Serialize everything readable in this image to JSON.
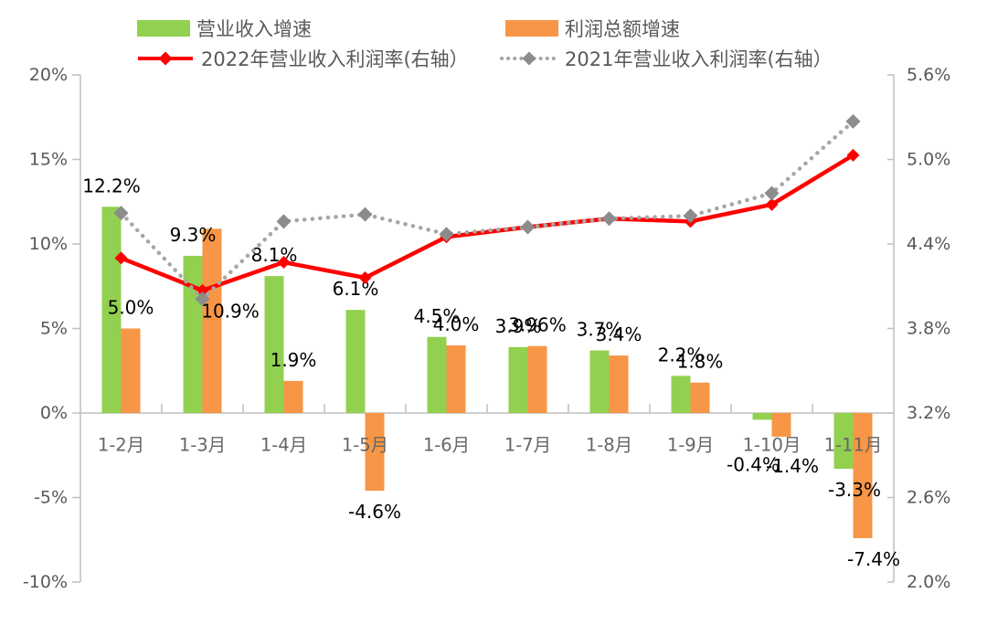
{
  "chart_data": {
    "type": "combo",
    "title": "",
    "legend_position": "top",
    "grid": "zero-line-only",
    "categories": [
      "1-2月",
      "1-3月",
      "1-4月",
      "1-5月",
      "1-6月",
      "1-7月",
      "1-8月",
      "1-9月",
      "1-10月",
      "1-11月"
    ],
    "series": [
      {
        "name": "营业收入增速",
        "type": "bar",
        "axis": "left",
        "color": "#92D050",
        "values": [
          12.2,
          9.3,
          8.1,
          6.1,
          4.5,
          3.9,
          3.7,
          2.2,
          -0.4,
          -3.3
        ],
        "labels": [
          "12.2%",
          "9.3%",
          "8.1%",
          "6.1%",
          "4.5%",
          "3.9%",
          "3.7%",
          "2.2%",
          "-0.4%",
          "-3.3%"
        ],
        "label_dx": [
          0,
          0,
          0,
          0,
          0,
          0,
          0,
          0,
          -10,
          12
        ],
        "label_dy": [
          0,
          0,
          0,
          0,
          0,
          0,
          0,
          0,
          26,
          0
        ]
      },
      {
        "name": "利润总额增速",
        "type": "bar",
        "axis": "left",
        "color": "#F79646",
        "values": [
          5.0,
          10.9,
          1.9,
          -4.6,
          4.0,
          3.96,
          3.4,
          1.8,
          -1.4,
          -7.4
        ],
        "labels": [
          "5.0%",
          "10.9%",
          "1.9%",
          "-4.6%",
          "4.0%",
          "3.96%",
          "3.4%",
          "1.8%",
          "-1.4%",
          "-7.4%"
        ],
        "label_dx": [
          0,
          20,
          0,
          0,
          0,
          0,
          0,
          0,
          12,
          12
        ],
        "label_dy": [
          0,
          113,
          0,
          0,
          0,
          0,
          0,
          0,
          9,
          0
        ]
      },
      {
        "name": "2022年营业收入利润率(右轴）",
        "type": "line",
        "axis": "right",
        "line_style": "solid",
        "marker": "diamond",
        "color": "#FF0000",
        "values": [
          4.3,
          4.07,
          4.27,
          4.16,
          4.45,
          4.52,
          4.58,
          4.56,
          4.68,
          5.03
        ]
      },
      {
        "name": "2021年营业收入利润率(右轴）",
        "type": "line",
        "axis": "right",
        "line_style": "dotted",
        "marker": "diamond",
        "color": "#A6A6A6",
        "marker_color": "#8C8C8C",
        "values": [
          4.62,
          4.01,
          4.56,
          4.61,
          4.47,
          4.52,
          4.58,
          4.6,
          4.76,
          5.27
        ]
      }
    ],
    "left_axis": {
      "min": -10,
      "max": 20,
      "step": 5,
      "tick_values": [
        20,
        15,
        10,
        5,
        0,
        -5,
        -10
      ],
      "tick_labels": [
        "20%",
        "15%",
        "10%",
        "5%",
        "0%",
        "-5%",
        "-10%"
      ]
    },
    "right_axis": {
      "min": 2.0,
      "max": 5.6,
      "step": 0.6,
      "tick_values": [
        5.6,
        5.0,
        4.4,
        3.8,
        3.2,
        2.6,
        2.0
      ],
      "tick_labels": [
        "5.6%",
        "5.0%",
        "4.4%",
        "3.8%",
        "3.2%",
        "2.6%",
        "2.0%"
      ]
    },
    "colors": {
      "axis_line": "#BFBFBF",
      "axis_text": "#595959",
      "category_text": "#666666",
      "data_label": "#000000"
    }
  }
}
